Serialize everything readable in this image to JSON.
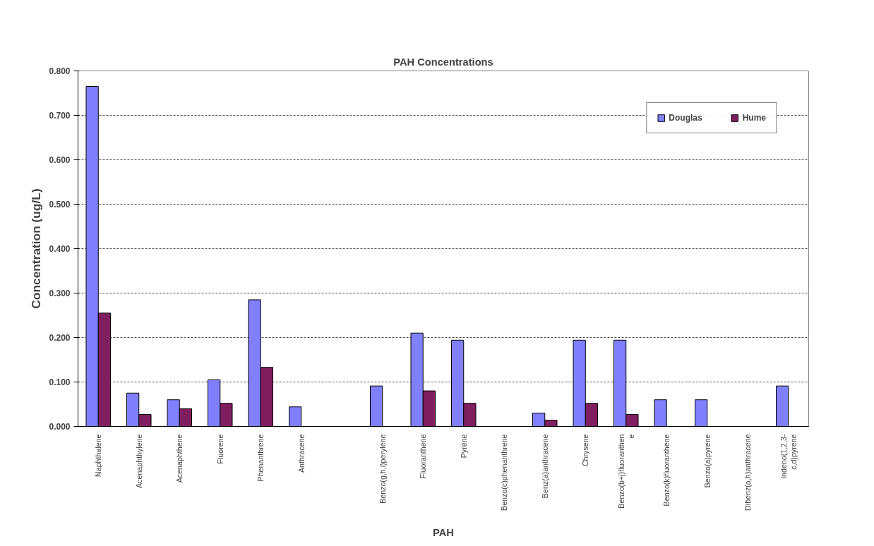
{
  "chart_data": {
    "type": "bar",
    "title": "PAH Concentrations",
    "xlabel": "PAH",
    "ylabel": "Concentration (ug/L)",
    "categories": [
      "Naphthalene",
      "Acenaphthylene",
      "Acenaphthene",
      "Fluorene",
      "Phenanthrene",
      "Anthracene",
      null,
      "Benzo(g,h,i)perylene",
      "Fluoranthene",
      "Pyrene",
      "Benzo(c)phenanthrene",
      "Benz(a)anthracene",
      "Chrysene",
      "Benzo(b+j)fluoranthen\ne",
      "Benzo(k)fluoranthene",
      "Benzo(a)pyrene",
      "Dibenz(a,h)anthracene",
      "Indeno(1,2,3-\nc,d)pyrene"
    ],
    "series": [
      {
        "name": "Douglas",
        "color": "#8080ff",
        "values": [
          0.765,
          0.075,
          0.06,
          0.105,
          0.285,
          0.044,
          null,
          0.091,
          0.21,
          0.194,
          null,
          0.03,
          0.194,
          0.194,
          0.06,
          0.06,
          null,
          0.091
        ]
      },
      {
        "name": "Hume",
        "color": "#7f1f5f",
        "values": [
          0.255,
          0.027,
          0.04,
          0.052,
          0.133,
          null,
          null,
          null,
          0.08,
          0.052,
          null,
          0.014,
          0.052,
          0.027,
          null,
          null,
          null,
          null
        ]
      }
    ],
    "ylim": [
      0,
      0.8
    ],
    "yticks": [
      {
        "value": 0,
        "label": "0.000"
      },
      {
        "value": 0.1,
        "label": "0.100"
      },
      {
        "value": 0.2,
        "label": "0.200"
      },
      {
        "value": 0.3,
        "label": "0.300"
      },
      {
        "value": 0.4,
        "label": "0.400"
      },
      {
        "value": 0.5,
        "label": "0.500"
      },
      {
        "value": 0.6,
        "label": "0.600"
      },
      {
        "value": 0.7,
        "label": "0.700"
      },
      {
        "value": 0.8,
        "label": "0.800"
      }
    ],
    "grid": "y",
    "legend": "top right"
  }
}
